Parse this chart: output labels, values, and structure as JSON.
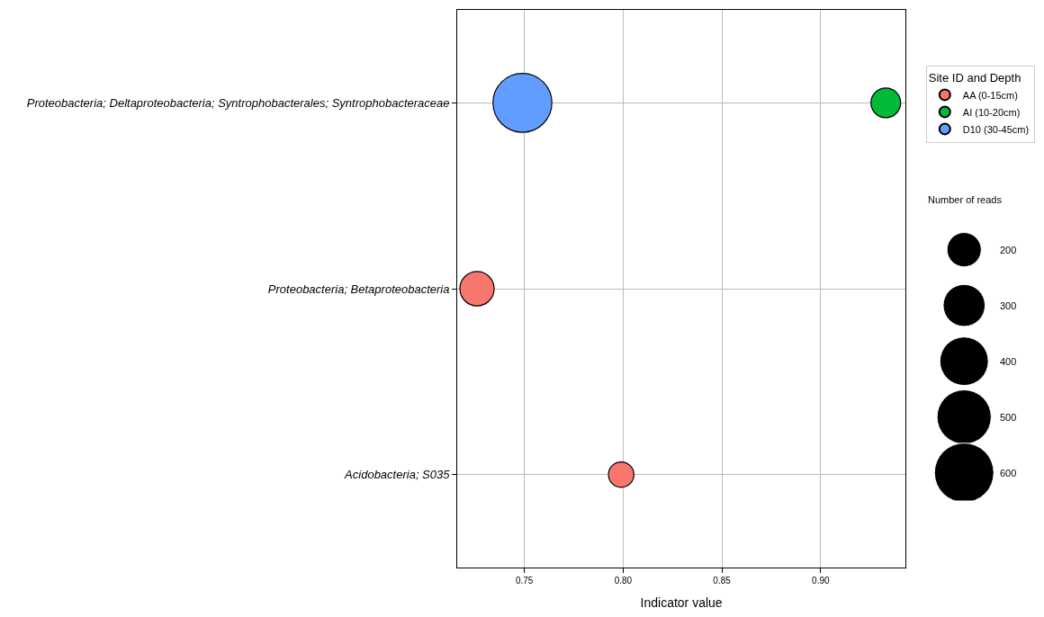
{
  "chart_data": {
    "type": "bubble",
    "orientation": "horizontal",
    "xlabel": "Indicator value",
    "legend_title": "Site ID and Depth",
    "legend": "right",
    "grid": true,
    "marker": "circle",
    "categories": [
      "Proteobacteria; Deltaproteobacteria; Syntrophobacterales; Syntrophobacteraceae",
      "Proteobacteria; Betaproteobacteria",
      "Acidobacteria; S035"
    ],
    "xlim": [
      0.716,
      0.943
    ],
    "xticks": [
      {
        "value": 0.75,
        "label": "0.75"
      },
      {
        "value": 0.8,
        "label": "0.80"
      },
      {
        "value": 0.85,
        "label": "0.85"
      },
      {
        "value": 0.9,
        "label": "0.90"
      }
    ],
    "annotations": [
      "Number of reads"
    ],
    "size_legend": [
      200,
      300,
      400,
      500,
      600
    ],
    "series": [
      {
        "name": "AA (0-15cm)",
        "color": "#f8766d",
        "values": [
          null,
          0.726,
          0.799
        ],
        "sizes": [
          null,
          200,
          110
        ]
      },
      {
        "name": "AI (10-20cm)",
        "color": "#00ba38",
        "values": [
          0.933,
          null,
          null
        ],
        "sizes": [
          150,
          null,
          null
        ]
      },
      {
        "name": "D10 (30-45cm)",
        "color": "#619cff",
        "values": [
          0.749,
          null,
          null
        ],
        "sizes": [
          590,
          null,
          null
        ]
      }
    ]
  }
}
